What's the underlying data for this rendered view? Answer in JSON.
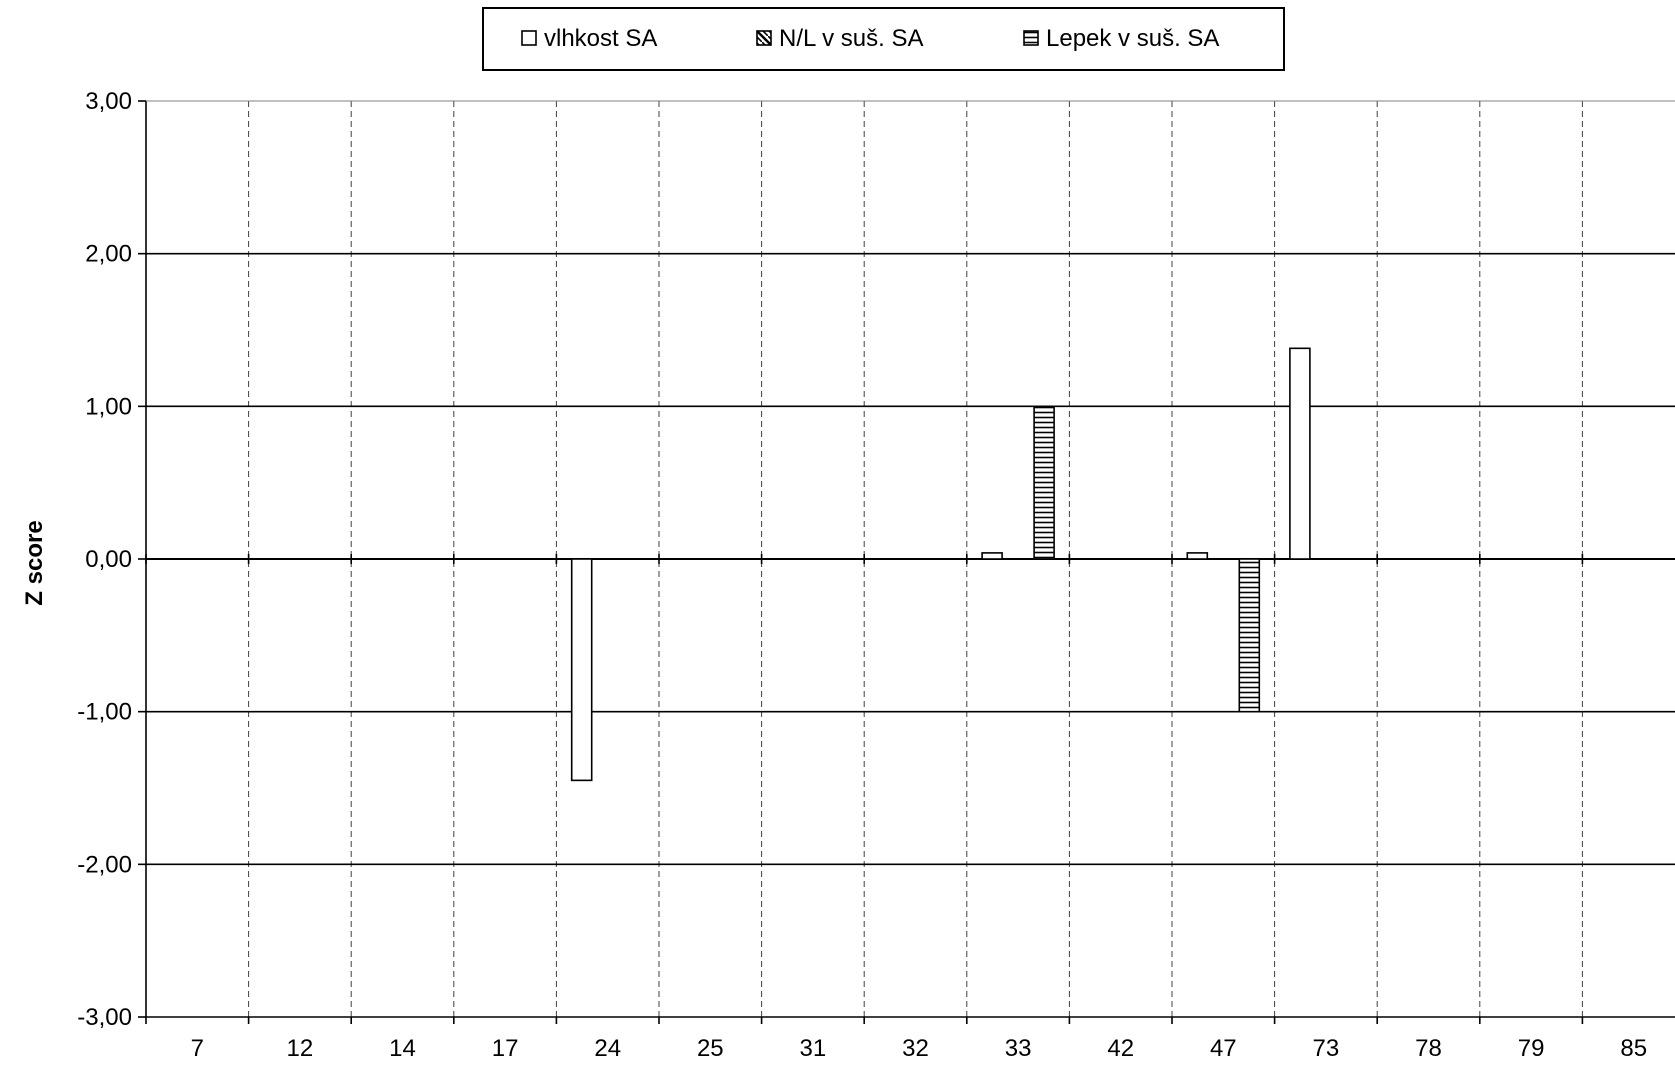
{
  "chart_data": {
    "type": "bar",
    "title": "",
    "xlabel": "",
    "ylabel": "Z score",
    "ylim": [
      -3,
      3
    ],
    "y_ticks": [
      "3,00",
      "2,00",
      "1,00",
      "0,00",
      "-1,00",
      "-2,00",
      "-3,00"
    ],
    "y_tick_values": [
      3,
      2,
      1,
      0,
      -1,
      -2,
      -3
    ],
    "categories": [
      "7",
      "12",
      "14",
      "17",
      "24",
      "25",
      "31",
      "32",
      "33",
      "42",
      "47",
      "73",
      "78",
      "79",
      "85"
    ],
    "grid": {
      "horizontal": true,
      "vertical": "dashed"
    },
    "legend_position": "top",
    "series": [
      {
        "name": "vlhkost SA",
        "pattern": "plain",
        "values": [
          null,
          null,
          null,
          null,
          -1.45,
          null,
          null,
          null,
          0.04,
          null,
          0.04,
          1.38,
          null,
          null,
          null
        ]
      },
      {
        "name": "N/L v suš. SA",
        "pattern": "diagonal",
        "values": [
          null,
          null,
          null,
          null,
          null,
          null,
          null,
          null,
          null,
          null,
          null,
          null,
          null,
          null,
          null
        ]
      },
      {
        "name": "Lepek v suš. SA",
        "pattern": "horizontal",
        "values": [
          null,
          null,
          null,
          null,
          null,
          null,
          null,
          null,
          1.0,
          null,
          -1.0,
          null,
          null,
          null,
          null
        ]
      }
    ]
  }
}
